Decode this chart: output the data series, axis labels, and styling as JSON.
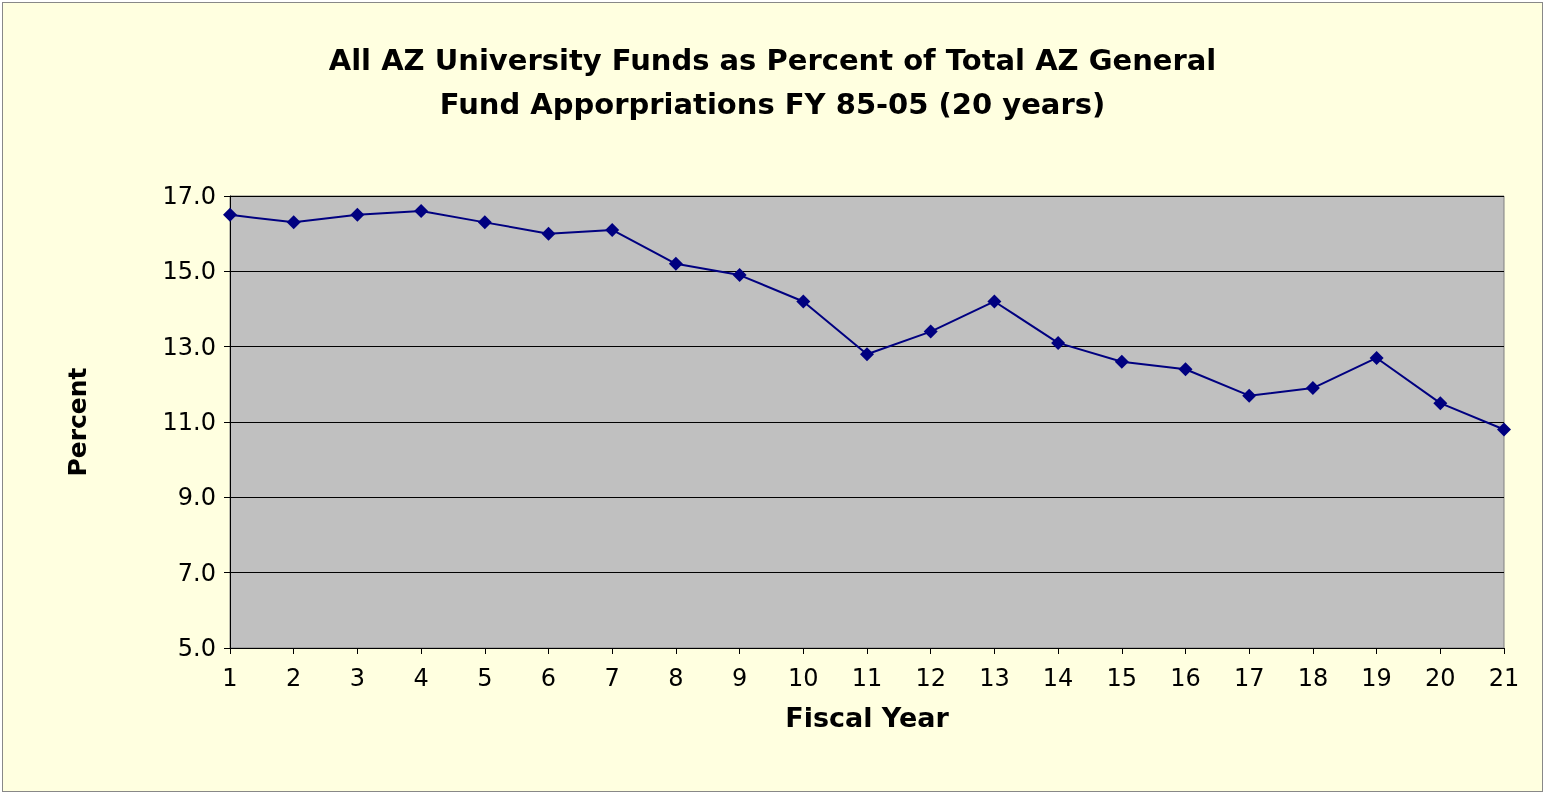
{
  "chart_data": {
    "type": "line",
    "title": "All AZ University Funds as Percent of Total AZ General\nFund Apporpriations FY 85-05 (20 years)",
    "xlabel": "Fiscal Year",
    "ylabel": "Percent",
    "x": [
      1,
      2,
      3,
      4,
      5,
      6,
      7,
      8,
      9,
      10,
      11,
      12,
      13,
      14,
      15,
      16,
      17,
      18,
      19,
      20,
      21
    ],
    "xlim": [
      1,
      21
    ],
    "xticks": [
      1,
      2,
      3,
      4,
      5,
      6,
      7,
      8,
      9,
      10,
      11,
      12,
      13,
      14,
      15,
      16,
      17,
      18,
      19,
      20,
      21
    ],
    "series": [
      {
        "color": "#000080",
        "values": [
          16.5,
          16.3,
          16.5,
          16.6,
          16.3,
          16.0,
          16.1,
          15.2,
          14.9,
          14.2,
          12.8,
          13.4,
          14.2,
          13.1,
          12.6,
          12.4,
          11.7,
          11.9,
          12.7,
          11.5,
          10.8
        ]
      }
    ],
    "ylim": [
      5,
      17
    ],
    "yticks": [
      {
        "value": 5,
        "label": "5.0"
      },
      {
        "value": 7,
        "label": "7.0"
      },
      {
        "value": 9,
        "label": "9.0"
      },
      {
        "value": 11,
        "label": "11.0"
      },
      {
        "value": 13,
        "label": "13.0"
      },
      {
        "value": 15,
        "label": "15.0"
      },
      {
        "value": 17,
        "label": "17.0"
      }
    ],
    "grid": "y",
    "marker": "diamond",
    "line_style": "solid"
  }
}
